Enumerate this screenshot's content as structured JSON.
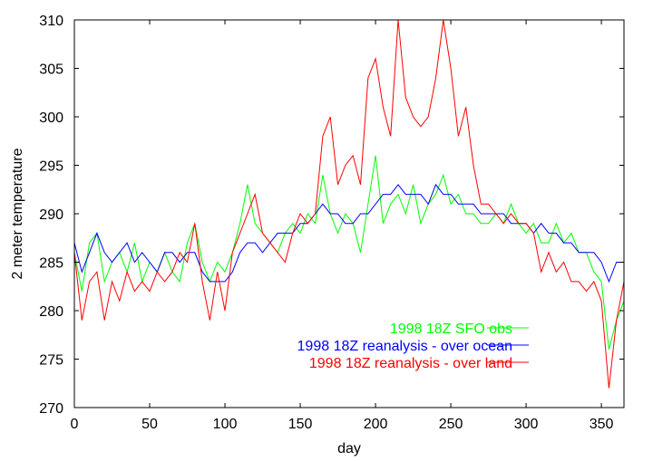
{
  "chart_data": {
    "type": "line",
    "title": "",
    "xlabel": "day",
    "ylabel": "2  meter  temperature",
    "xlim": [
      0,
      365
    ],
    "ylim": [
      270,
      310
    ],
    "xticks": [
      0,
      50,
      100,
      150,
      200,
      250,
      300,
      350
    ],
    "yticks": [
      270,
      275,
      280,
      285,
      290,
      295,
      300,
      305,
      310
    ],
    "grid": false,
    "legend_position": "bottom-right",
    "x_step": 5,
    "series": [
      {
        "name": "1998 18Z SFO obs",
        "color": "#00ff00",
        "values": [
          286,
          282,
          287,
          288,
          283,
          285,
          286,
          284,
          287,
          283,
          285,
          284,
          286,
          284,
          283,
          287,
          289,
          285,
          283,
          285,
          284,
          286,
          289,
          293,
          289,
          288,
          287,
          286,
          288,
          289,
          288,
          290,
          289,
          294,
          290,
          288,
          290,
          289,
          286,
          291,
          296,
          289,
          291,
          292,
          290,
          293,
          289,
          291,
          292,
          294,
          291,
          292,
          290,
          290,
          289,
          289,
          290,
          289,
          291,
          289,
          288,
          289,
          287,
          287,
          289,
          287,
          288,
          286,
          286,
          284,
          283,
          276,
          279,
          281
        ]
      },
      {
        "name": "1998 18Z reanalysis - over ocean",
        "color": "#0000ff",
        "values": [
          287,
          284,
          286,
          288,
          286,
          285,
          286,
          287,
          285,
          286,
          285,
          284,
          286,
          286,
          285,
          286,
          286,
          284,
          283,
          283,
          283,
          284,
          286,
          287,
          287,
          286,
          287,
          288,
          288,
          288,
          289,
          289,
          290,
          291,
          290,
          290,
          289,
          289,
          290,
          290,
          291,
          292,
          292,
          293,
          292,
          292,
          292,
          291,
          293,
          292,
          292,
          291,
          291,
          291,
          290,
          290,
          290,
          290,
          289,
          289,
          289,
          288,
          289,
          288,
          288,
          287,
          287,
          286,
          286,
          286,
          285,
          283,
          285,
          285
        ]
      },
      {
        "name": "1998 18Z reanalysis - over land",
        "color": "#ff0000",
        "values": [
          286,
          279,
          283,
          284,
          279,
          283,
          281,
          284,
          282,
          283,
          282,
          284,
          283,
          284,
          286,
          285,
          289,
          283,
          279,
          284,
          280,
          286,
          288,
          290,
          292,
          288,
          287,
          286,
          285,
          288,
          290,
          289,
          290,
          298,
          300,
          293,
          295,
          296,
          293,
          304,
          306,
          301,
          298,
          310,
          302,
          300,
          299,
          300,
          304,
          310,
          305,
          298,
          301,
          295,
          291,
          291,
          290,
          289,
          290,
          289,
          289,
          288,
          284,
          286,
          284,
          285,
          283,
          283,
          282,
          283,
          281,
          272,
          279,
          283
        ]
      }
    ]
  }
}
